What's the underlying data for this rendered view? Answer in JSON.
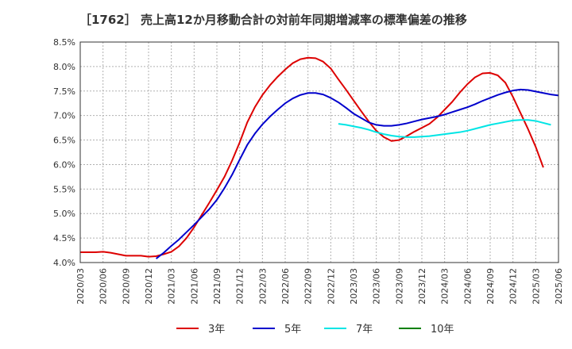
{
  "title": "［1762］ 売上高12か月移動合計の対前年同期増減率の標準偏差の推移",
  "chart_data": {
    "type": "line",
    "ylim": [
      4.0,
      8.5
    ],
    "yticks": [
      "4.0%",
      "4.5%",
      "5.0%",
      "5.5%",
      "6.0%",
      "6.5%",
      "7.0%",
      "7.5%",
      "8.0%",
      "8.5%"
    ],
    "xticks": [
      "2020/03",
      "2020/06",
      "2020/09",
      "2020/12",
      "2021/03",
      "2021/06",
      "2021/09",
      "2021/12",
      "2022/03",
      "2022/06",
      "2022/09",
      "2022/12",
      "2023/03",
      "2023/06",
      "2023/09",
      "2023/12",
      "2024/03",
      "2024/06",
      "2024/09",
      "2024/12",
      "2025/03",
      "2025/06"
    ],
    "grid": true,
    "legend_position": "bottom",
    "series": [
      {
        "name": "3年",
        "color": "#dd0000",
        "start": "2020/03",
        "values": [
          4.21,
          4.21,
          4.21,
          4.22,
          4.2,
          4.17,
          4.14,
          4.14,
          4.14,
          4.12,
          4.13,
          4.17,
          4.22,
          4.33,
          4.5,
          4.72,
          4.97,
          5.22,
          5.48,
          5.75,
          6.08,
          6.45,
          6.86,
          7.17,
          7.42,
          7.62,
          7.79,
          7.94,
          8.07,
          8.15,
          8.18,
          8.17,
          8.1,
          7.96,
          7.74,
          7.53,
          7.31,
          7.09,
          6.88,
          6.69,
          6.56,
          6.48,
          6.5,
          6.58,
          6.67,
          6.75,
          6.83,
          6.96,
          7.12,
          7.28,
          7.47,
          7.64,
          7.78,
          7.86,
          7.87,
          7.82,
          7.67,
          7.38,
          7.05,
          6.72,
          6.36,
          5.94
        ]
      },
      {
        "name": "5年",
        "color": "#0000cc",
        "start": "2021/01",
        "values": [
          4.08,
          4.2,
          4.34,
          4.47,
          4.62,
          4.77,
          4.93,
          5.09,
          5.28,
          5.52,
          5.79,
          6.1,
          6.4,
          6.63,
          6.82,
          6.98,
          7.12,
          7.25,
          7.35,
          7.42,
          7.46,
          7.46,
          7.43,
          7.36,
          7.27,
          7.16,
          7.04,
          6.95,
          6.86,
          6.81,
          6.79,
          6.79,
          6.81,
          6.84,
          6.88,
          6.92,
          6.95,
          6.98,
          7.02,
          7.07,
          7.12,
          7.17,
          7.23,
          7.3,
          7.36,
          7.42,
          7.47,
          7.51,
          7.53,
          7.52,
          7.49,
          7.46,
          7.43,
          7.41
        ]
      },
      {
        "name": "7年",
        "color": "#00e5e5",
        "start": "2023/01",
        "values": [
          6.83,
          6.81,
          6.78,
          6.75,
          6.71,
          6.66,
          6.62,
          6.59,
          6.57,
          6.56,
          6.56,
          6.57,
          6.58,
          6.6,
          6.62,
          6.64,
          6.66,
          6.69,
          6.73,
          6.77,
          6.81,
          6.84,
          6.87,
          6.9,
          6.91,
          6.91,
          6.89,
          6.85,
          6.81
        ]
      },
      {
        "name": "10年",
        "color": "#008000",
        "start": "2025/03",
        "values": []
      }
    ]
  }
}
